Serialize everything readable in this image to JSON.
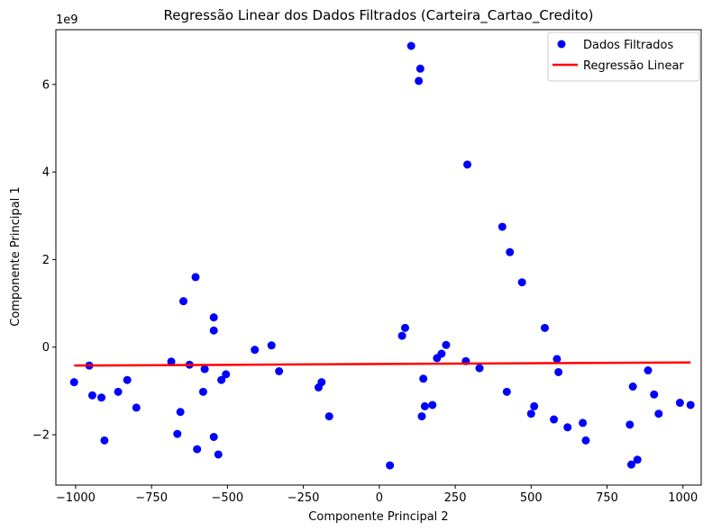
{
  "chart_data": {
    "type": "scatter",
    "title": "Regressão Linear dos Dados Filtrados (Carteira_Cartao_Credito)",
    "xlabel": "Componente Principal 2",
    "ylabel": "Componente Principal 1",
    "y_offset_label": "1e9",
    "xlim": [
      -1065,
      1060
    ],
    "ylim": [
      -3.15,
      7.25
    ],
    "y_multiplier": 1000000000,
    "xticks": [
      -1000,
      -750,
      -500,
      -250,
      0,
      250,
      500,
      750,
      1000
    ],
    "xtick_labels": [
      "−1000",
      "−750",
      "−500",
      "−250",
      "0",
      "250",
      "500",
      "750",
      "1000"
    ],
    "yticks": [
      -2,
      0,
      2,
      4,
      6
    ],
    "ytick_labels": [
      "−2",
      "0",
      "2",
      "4",
      "6"
    ],
    "grid": false,
    "legend_position": "top-right",
    "series": [
      {
        "name": "Dados Filtrados",
        "kind": "scatter",
        "color": "#0000ff",
        "points": [
          [
            -1005,
            -0.8
          ],
          [
            -955,
            -0.42
          ],
          [
            -945,
            -1.1
          ],
          [
            -915,
            -1.15
          ],
          [
            -905,
            -2.13
          ],
          [
            -860,
            -1.02
          ],
          [
            -830,
            -0.75
          ],
          [
            -800,
            -1.38
          ],
          [
            -685,
            -0.33
          ],
          [
            -665,
            -1.98
          ],
          [
            -655,
            -1.48
          ],
          [
            -645,
            1.05
          ],
          [
            -625,
            -0.4
          ],
          [
            -605,
            1.6
          ],
          [
            -600,
            -2.33
          ],
          [
            -580,
            -1.02
          ],
          [
            -575,
            -0.5
          ],
          [
            -545,
            0.68
          ],
          [
            -545,
            0.38
          ],
          [
            -545,
            -2.05
          ],
          [
            -530,
            -2.45
          ],
          [
            -520,
            -0.75
          ],
          [
            -505,
            -0.62
          ],
          [
            -410,
            -0.06
          ],
          [
            -355,
            0.04
          ],
          [
            -330,
            -0.55
          ],
          [
            -200,
            -0.92
          ],
          [
            -190,
            -0.8
          ],
          [
            -165,
            -1.58
          ],
          [
            35,
            -2.7
          ],
          [
            75,
            0.26
          ],
          [
            85,
            0.44
          ],
          [
            105,
            6.88
          ],
          [
            130,
            6.08
          ],
          [
            135,
            6.36
          ],
          [
            140,
            -1.58
          ],
          [
            145,
            -0.72
          ],
          [
            150,
            -1.35
          ],
          [
            175,
            -1.32
          ],
          [
            190,
            -0.25
          ],
          [
            205,
            -0.15
          ],
          [
            220,
            0.05
          ],
          [
            285,
            -0.32
          ],
          [
            290,
            4.17
          ],
          [
            330,
            -0.48
          ],
          [
            405,
            2.75
          ],
          [
            420,
            -1.02
          ],
          [
            430,
            2.17
          ],
          [
            470,
            1.48
          ],
          [
            500,
            -1.52
          ],
          [
            510,
            -1.35
          ],
          [
            545,
            0.44
          ],
          [
            575,
            -1.65
          ],
          [
            585,
            -0.27
          ],
          [
            590,
            -0.57
          ],
          [
            620,
            -1.83
          ],
          [
            670,
            -1.73
          ],
          [
            680,
            -2.13
          ],
          [
            825,
            -1.77
          ],
          [
            830,
            -2.68
          ],
          [
            835,
            -0.9
          ],
          [
            850,
            -2.57
          ],
          [
            885,
            -0.53
          ],
          [
            905,
            -1.08
          ],
          [
            920,
            -1.52
          ],
          [
            990,
            -1.27
          ],
          [
            1025,
            -1.32
          ]
        ]
      },
      {
        "name": "Regressão Linear",
        "kind": "line",
        "color": "#ff0000",
        "points": [
          [
            -1005,
            -0.42
          ],
          [
            1025,
            -0.35
          ]
        ]
      }
    ]
  }
}
